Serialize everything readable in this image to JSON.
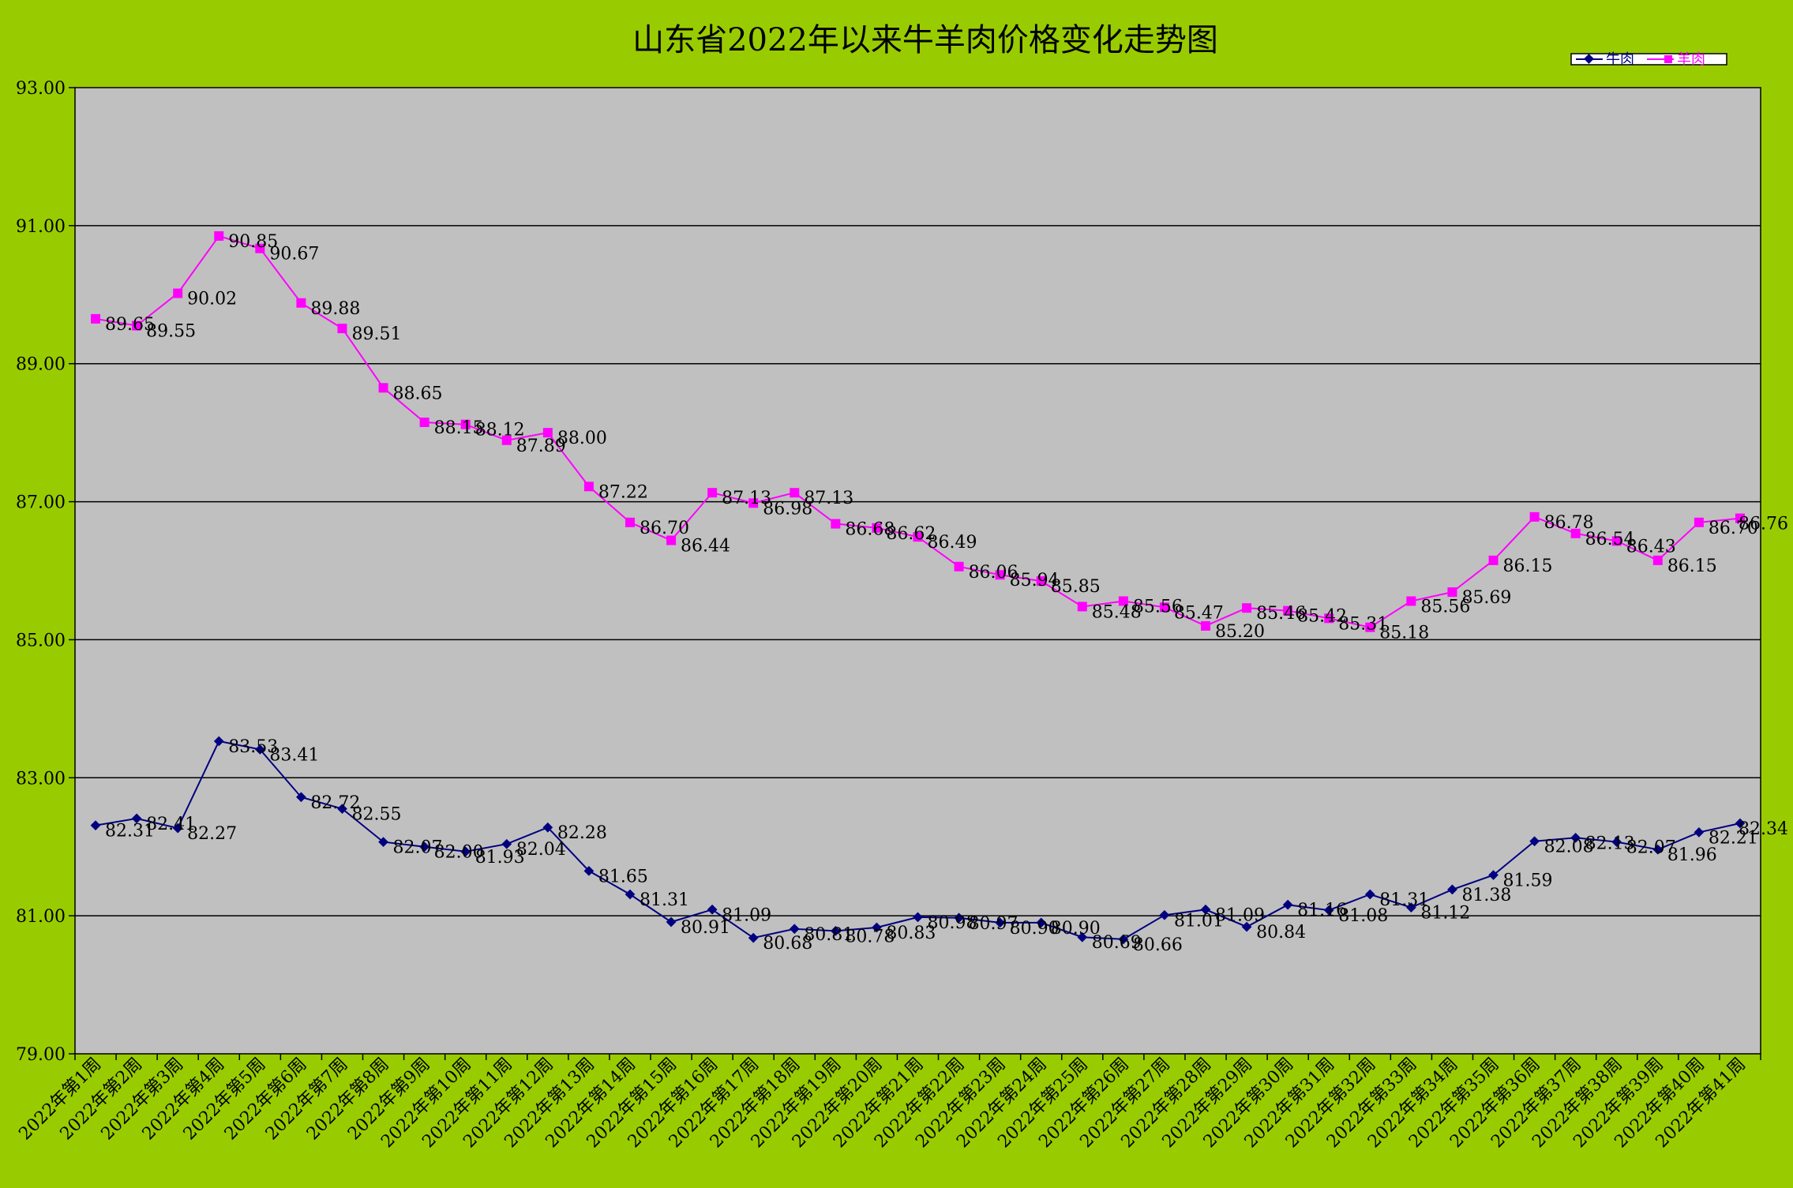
{
  "chart_data": {
    "type": "line",
    "title": "山东省2022年以来牛羊肉价格变化走势图",
    "xlabel": "",
    "ylabel": "",
    "ylim": [
      79,
      93
    ],
    "yticks": [
      "79.00",
      "81.00",
      "83.00",
      "85.00",
      "87.00",
      "89.00",
      "91.00",
      "93.00"
    ],
    "grid": true,
    "legend_position": "top-right",
    "categories": [
      "2022年第1周",
      "2022年第2周",
      "2022年第3周",
      "2022年第4周",
      "2022年第5周",
      "2022年第6周",
      "2022年第7周",
      "2022年第8周",
      "2022年第9周",
      "2022年第10周",
      "2022年第11周",
      "2022年第12周",
      "2022年第13周",
      "2022年第14周",
      "2022年第15周",
      "2022年第16周",
      "2022年第17周",
      "2022年第18周",
      "2022年第19周",
      "2022年第20周",
      "2022年第21周",
      "2022年第22周",
      "2022年第23周",
      "2022年第24周",
      "2022年第25周",
      "2022年第26周",
      "2022年第27周",
      "2022年第28周",
      "2022年第29周",
      "2022年第30周",
      "2022年第31周",
      "2022年第32周",
      "2022年第33周",
      "2022年第34周",
      "2022年第35周",
      "2022年第36周",
      "2022年第37周",
      "2022年第38周",
      "2022年第39周",
      "2022年第40周",
      "2022年第41周"
    ],
    "series": [
      {
        "name": "牛肉",
        "color": "#000080",
        "marker": "diamond",
        "values": [
          82.31,
          82.41,
          82.27,
          83.53,
          83.41,
          82.72,
          82.55,
          82.07,
          82.0,
          81.93,
          82.04,
          82.28,
          81.65,
          81.31,
          80.91,
          81.09,
          80.68,
          80.81,
          80.78,
          80.83,
          80.98,
          80.97,
          80.9,
          80.9,
          80.69,
          80.66,
          81.01,
          81.09,
          80.84,
          81.16,
          81.08,
          81.31,
          81.12,
          81.38,
          81.59,
          82.08,
          82.13,
          82.07,
          81.96,
          82.21,
          82.34
        ],
        "labels": [
          "82.31",
          "82.41",
          "82.27",
          "83.53",
          "83.41",
          "82.72",
          "82.55",
          "82.07",
          "82.00",
          "81.93",
          "82.04",
          "82.28",
          "81.65",
          "81.31",
          "80.91",
          "81.09",
          "80.68",
          "80.81",
          "80.78",
          "80.83",
          "80.98",
          "80.97",
          "80.90",
          "80.90",
          "80.69",
          "80.66",
          "81.01",
          "81.09",
          "80.84",
          "81.16",
          "81.08",
          "81.31",
          "81.12",
          "81.38",
          "81.59",
          "82.08",
          "82.13",
          "82.07",
          "81.96",
          "82.21",
          "82.34"
        ]
      },
      {
        "name": "羊肉",
        "color": "#ff00ff",
        "marker": "square",
        "values": [
          89.65,
          89.55,
          90.02,
          90.85,
          90.67,
          89.88,
          89.51,
          88.65,
          88.15,
          88.12,
          87.89,
          88.0,
          87.22,
          86.7,
          86.44,
          87.13,
          86.98,
          87.13,
          86.68,
          86.62,
          86.49,
          86.06,
          85.94,
          85.85,
          85.48,
          85.56,
          85.47,
          85.2,
          85.46,
          85.42,
          85.31,
          85.18,
          85.56,
          85.69,
          86.15,
          86.78,
          86.54,
          86.43,
          86.15,
          86.7,
          86.76
        ],
        "labels": [
          "89.65",
          "89.55",
          "90.02",
          "90.85",
          "90.67",
          "89.88",
          "89.51",
          "88.65",
          "88.15",
          "88.12",
          "87.89",
          "88.00",
          "87.22",
          "86.70",
          "86.44",
          "87.13",
          "86.98",
          "87.13",
          "86.68",
          "86.62",
          "86.49",
          "86.06",
          "85.94",
          "85.85",
          "85.48",
          "85.56",
          "85.47",
          "85.20",
          "85.46",
          "85.42",
          "85.31",
          "85.18",
          "85.56",
          "85.69",
          "86.15",
          "86.78",
          "86.54",
          "86.43",
          "86.15",
          "86.70",
          "86.76"
        ]
      }
    ]
  }
}
